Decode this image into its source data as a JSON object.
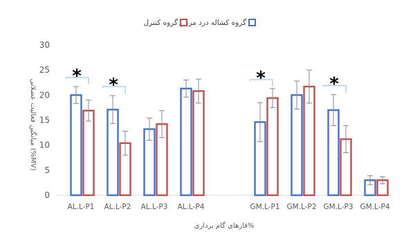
{
  "chart_data": {
    "type": "bar",
    "xlabel": "فازهای گام برداری%",
    "ylabel": "میانگین فعالیت عضلانی (%MV)",
    "ylim": [
      0,
      30
    ],
    "yticks": [
      "0",
      "5",
      "10",
      "15",
      "20",
      "25",
      "30"
    ],
    "grid": false,
    "legend_position": "top",
    "categories": [
      "AL.L-P1",
      "AL.L-P2",
      "AL.L-P3",
      "AL.L-P4",
      "GM.L-P1",
      "GM.L-P2",
      "GM.L-P3",
      "GM.L-P4"
    ],
    "series": [
      {
        "name": "گروه کشاله درد مزمن",
        "color": "#4472C4",
        "values": [
          20,
          17.1,
          13.2,
          21.3,
          14.6,
          20,
          17,
          3
        ],
        "error": [
          1.7,
          2.8,
          2.2,
          1.7,
          3.9,
          2.8,
          3.1,
          0.9
        ]
      },
      {
        "name": "گروه کنترل",
        "color": "#C0504D",
        "values": [
          16.9,
          10.4,
          14.2,
          20.8,
          19.4,
          21.7,
          11.2,
          3
        ],
        "error": [
          2.1,
          2.4,
          2.7,
          2.4,
          1.9,
          3.3,
          2.7,
          0.7
        ]
      }
    ],
    "significance": {
      "marker": "*",
      "categories": [
        "AL.L-P1",
        "AL.L-P2",
        "GM.L-P1",
        "GM.L-P3"
      ]
    }
  }
}
